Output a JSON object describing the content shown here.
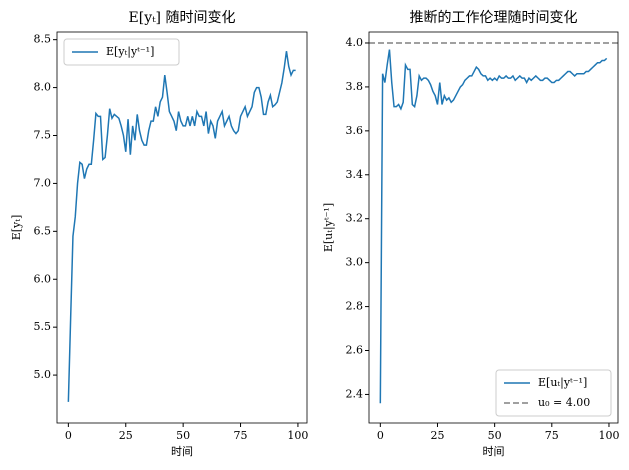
{
  "chart_data": [
    {
      "type": "line",
      "title": "E[yₜ] 随时间变化",
      "x_label": "时间",
      "y_label": "E[yₜ]",
      "x": [
        0,
        1,
        2,
        3,
        4,
        5,
        6,
        7,
        8,
        9,
        10,
        11,
        12,
        13,
        14,
        15,
        16,
        17,
        18,
        19,
        20,
        21,
        22,
        23,
        24,
        25,
        26,
        27,
        28,
        29,
        30,
        31,
        32,
        33,
        34,
        35,
        36,
        37,
        38,
        39,
        40,
        41,
        42,
        43,
        44,
        45,
        46,
        47,
        48,
        49,
        50,
        51,
        52,
        53,
        54,
        55,
        56,
        57,
        58,
        59,
        60,
        61,
        62,
        63,
        64,
        65,
        66,
        67,
        68,
        69,
        70,
        71,
        72,
        73,
        74,
        75,
        76,
        77,
        78,
        79,
        80,
        81,
        82,
        83,
        84,
        85,
        86,
        87,
        88,
        89,
        90,
        91,
        92,
        93,
        94,
        95,
        96,
        97,
        98,
        99
      ],
      "series": [
        {
          "name": "E[yₜ|yᵗ⁻¹]",
          "color": "#1f77b4",
          "values": [
            4.72,
            5.6,
            6.45,
            6.65,
            7.0,
            7.22,
            7.2,
            7.05,
            7.15,
            7.2,
            7.2,
            7.45,
            7.73,
            7.7,
            7.7,
            7.25,
            7.27,
            7.5,
            7.78,
            7.68,
            7.72,
            7.7,
            7.68,
            7.6,
            7.5,
            7.33,
            7.67,
            7.3,
            7.6,
            7.45,
            7.72,
            7.55,
            7.45,
            7.4,
            7.4,
            7.55,
            7.65,
            7.65,
            7.8,
            7.7,
            7.85,
            7.9,
            8.13,
            7.95,
            7.75,
            7.7,
            7.65,
            7.55,
            7.75,
            7.65,
            7.6,
            7.6,
            7.7,
            7.6,
            7.7,
            7.6,
            7.75,
            7.7,
            7.7,
            7.6,
            7.75,
            7.52,
            7.65,
            7.6,
            7.47,
            7.65,
            7.7,
            7.75,
            7.6,
            7.65,
            7.7,
            7.6,
            7.55,
            7.52,
            7.55,
            7.7,
            7.75,
            7.8,
            7.7,
            7.75,
            7.8,
            7.95,
            8.0,
            8.0,
            7.9,
            7.72,
            7.72,
            7.85,
            7.92,
            7.8,
            7.82,
            7.85,
            7.95,
            8.05,
            8.2,
            8.38,
            8.22,
            8.13,
            8.18,
            8.18
          ]
        }
      ],
      "xlim": [
        -4.95,
        103.95
      ],
      "xticks": [
        0,
        25,
        50,
        75,
        100
      ],
      "ylim": [
        4.5,
        8.58
      ],
      "yticks": [
        {
          "value": 5,
          "label": "5.0"
        },
        5.5,
        {
          "value": 6,
          "label": "6.0"
        },
        6.5,
        {
          "value": 7,
          "label": "7.0"
        },
        7.5,
        {
          "value": 8,
          "label": "8.0"
        },
        8.5
      ],
      "legend": "upper-left"
    },
    {
      "type": "line",
      "title": "推断的工作伦理随时间变化",
      "x_label": "时间",
      "y_label": "E[uₜ|yᵗ⁻¹]",
      "x": [
        0,
        1,
        2,
        3,
        4,
        5,
        6,
        7,
        8,
        9,
        10,
        11,
        12,
        13,
        14,
        15,
        16,
        17,
        18,
        19,
        20,
        21,
        22,
        23,
        24,
        25,
        26,
        27,
        28,
        29,
        30,
        31,
        32,
        33,
        34,
        35,
        36,
        37,
        38,
        39,
        40,
        41,
        42,
        43,
        44,
        45,
        46,
        47,
        48,
        49,
        50,
        51,
        52,
        53,
        54,
        55,
        56,
        57,
        58,
        59,
        60,
        61,
        62,
        63,
        64,
        65,
        66,
        67,
        68,
        69,
        70,
        71,
        72,
        73,
        74,
        75,
        76,
        77,
        78,
        79,
        80,
        81,
        82,
        83,
        84,
        85,
        86,
        87,
        88,
        89,
        90,
        91,
        92,
        93,
        94,
        95,
        96,
        97,
        98,
        99
      ],
      "series": [
        {
          "name": "E[uₜ|yᵗ⁻¹]",
          "color": "#1f77b4",
          "values": [
            2.36,
            3.86,
            3.82,
            3.9,
            3.97,
            3.82,
            3.71,
            3.71,
            3.72,
            3.7,
            3.73,
            3.9,
            3.88,
            3.88,
            3.72,
            3.71,
            3.76,
            3.85,
            3.83,
            3.84,
            3.84,
            3.83,
            3.81,
            3.78,
            3.76,
            3.72,
            3.82,
            3.72,
            3.76,
            3.74,
            3.75,
            3.73,
            3.74,
            3.76,
            3.78,
            3.8,
            3.81,
            3.83,
            3.84,
            3.85,
            3.85,
            3.87,
            3.89,
            3.88,
            3.86,
            3.85,
            3.85,
            3.83,
            3.84,
            3.83,
            3.84,
            3.83,
            3.85,
            3.84,
            3.84,
            3.85,
            3.84,
            3.84,
            3.85,
            3.83,
            3.84,
            3.85,
            3.84,
            3.84,
            3.82,
            3.84,
            3.83,
            3.84,
            3.85,
            3.84,
            3.83,
            3.83,
            3.84,
            3.84,
            3.83,
            3.82,
            3.82,
            3.83,
            3.83,
            3.84,
            3.85,
            3.86,
            3.87,
            3.87,
            3.86,
            3.85,
            3.86,
            3.86,
            3.86,
            3.86,
            3.87,
            3.87,
            3.88,
            3.89,
            3.9,
            3.91,
            3.91,
            3.92,
            3.92,
            3.93
          ]
        }
      ],
      "hlines": [
        {
          "name": "u₀ = 4.00",
          "value": 4.0,
          "color": "#808080",
          "dashed": true
        }
      ],
      "xlim": [
        -4.95,
        103.95
      ],
      "xticks": [
        0,
        25,
        50,
        75,
        100
      ],
      "ylim": [
        2.27,
        4.05
      ],
      "yticks": [
        2.4,
        2.6,
        2.8,
        {
          "value": 3,
          "label": "3.0"
        },
        3.2,
        3.4,
        3.6,
        3.8,
        {
          "value": 4,
          "label": "4.0"
        }
      ],
      "legend": "lower-right"
    }
  ]
}
